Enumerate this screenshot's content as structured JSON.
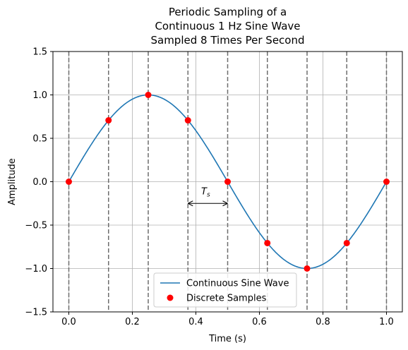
{
  "chart_data": {
    "type": "line",
    "title_lines": [
      "Periodic Sampling of a",
      "Continuous 1 Hz Sine Wave",
      "Sampled 8 Times Per Second"
    ],
    "xlabel": "Time (s)",
    "ylabel": "Amplitude",
    "xlim": [
      -0.05,
      1.05
    ],
    "ylim": [
      -1.5,
      1.5
    ],
    "xticks": [
      0.0,
      0.2,
      0.4,
      0.6,
      0.8,
      1.0
    ],
    "xtick_labels": [
      "0.0",
      "0.2",
      "0.4",
      "0.6",
      "0.8",
      "1.0"
    ],
    "yticks": [
      -1.5,
      -1.0,
      -0.5,
      0.0,
      0.5,
      1.0,
      1.5
    ],
    "ytick_labels": [
      "−1.5",
      "−1.0",
      "−0.5",
      "0.0",
      "0.5",
      "1.0",
      "1.5"
    ],
    "grid": true,
    "legend_position": "lower center",
    "series": [
      {
        "name": "Continuous Sine Wave",
        "kind": "line",
        "color": "#1f77b4",
        "function": "sin(2*pi*t)",
        "frequency_hz": 1,
        "t_range": [
          0,
          1
        ]
      },
      {
        "name": "Discrete Samples",
        "kind": "markers",
        "color": "#ff0000",
        "x": [
          0.0,
          0.125,
          0.25,
          0.375,
          0.5,
          0.625,
          0.75,
          0.875,
          1.0
        ],
        "y": [
          0.0,
          0.707,
          1.0,
          0.707,
          0.0,
          -0.707,
          -1.0,
          -0.707,
          0.0
        ]
      }
    ],
    "sample_lines": {
      "x": [
        0.0,
        0.125,
        0.25,
        0.375,
        0.5,
        0.625,
        0.75,
        0.875,
        1.0
      ],
      "style": "dashed",
      "color": "#6e6e6e"
    },
    "annotation": {
      "label": "T",
      "subscript": "s",
      "x_start": 0.375,
      "x_end": 0.5,
      "y": -0.25
    }
  }
}
